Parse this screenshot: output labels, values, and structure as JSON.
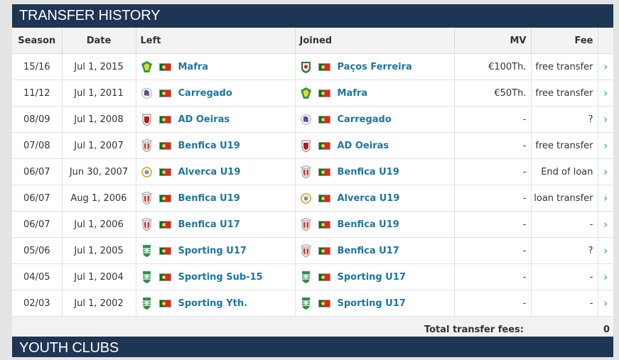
{
  "transfer_history": {
    "title": "TRANSFER HISTORY",
    "columns": {
      "season": "Season",
      "date": "Date",
      "left": "Left",
      "joined": "Joined",
      "mv": "MV",
      "fee": "Fee"
    },
    "rows": [
      {
        "season": "15/16",
        "date": "Jul 1, 2015",
        "left": "Mafra",
        "left_crest": "mafra-crest-icon",
        "joined": "Paços Ferreira",
        "joined_crest": "pacos-crest-icon",
        "mv": "€100Th.",
        "fee": "free transfer"
      },
      {
        "season": "11/12",
        "date": "Jul 1, 2011",
        "left": "Carregado",
        "left_crest": "carregado-crest-icon",
        "joined": "Mafra",
        "joined_crest": "mafra-crest-icon",
        "mv": "€50Th.",
        "fee": "free transfer"
      },
      {
        "season": "08/09",
        "date": "Jul 1, 2008",
        "left": "AD Oeiras",
        "left_crest": "oeiras-crest-icon",
        "joined": "Carregado",
        "joined_crest": "carregado-crest-icon",
        "mv": "-",
        "fee": "?"
      },
      {
        "season": "07/08",
        "date": "Jul 1, 2007",
        "left": "Benfica U19",
        "left_crest": "benfica-crest-icon",
        "joined": "AD Oeiras",
        "joined_crest": "oeiras-crest-icon",
        "mv": "-",
        "fee": "free transfer"
      },
      {
        "season": "06/07",
        "date": "Jun 30, 2007",
        "left": "Alverca U19",
        "left_crest": "alverca-crest-icon",
        "joined": "Benfica U19",
        "joined_crest": "benfica-crest-icon",
        "mv": "-",
        "fee": "End of loan"
      },
      {
        "season": "06/07",
        "date": "Aug 1, 2006",
        "left": "Benfica U19",
        "left_crest": "benfica-crest-icon",
        "joined": "Alverca U19",
        "joined_crest": "alverca-crest-icon",
        "mv": "-",
        "fee": "loan transfer"
      },
      {
        "season": "06/07",
        "date": "Jul 1, 2006",
        "left": "Benfica U17",
        "left_crest": "benfica-crest-icon",
        "joined": "Benfica U19",
        "joined_crest": "benfica-crest-icon",
        "mv": "-",
        "fee": "-"
      },
      {
        "season": "05/06",
        "date": "Jul 1, 2005",
        "left": "Sporting U17",
        "left_crest": "sporting-crest-icon",
        "joined": "Benfica U17",
        "joined_crest": "benfica-crest-icon",
        "mv": "-",
        "fee": "?"
      },
      {
        "season": "04/05",
        "date": "Jul 1, 2004",
        "left": "Sporting Sub-15",
        "left_crest": "sporting-crest-icon",
        "joined": "Sporting U17",
        "joined_crest": "sporting-crest-icon",
        "mv": "-",
        "fee": "-"
      },
      {
        "season": "02/03",
        "date": "Jul 1, 2002",
        "left": "Sporting Yth.",
        "left_crest": "sporting-crest-icon",
        "joined": "Sporting U17",
        "joined_crest": "sporting-crest-icon",
        "mv": "-",
        "fee": "-"
      }
    ],
    "total_label": "Total transfer fees:",
    "total_value": "0",
    "chevron": "›"
  },
  "youth_clubs": {
    "title": "YOUTH CLUBS"
  },
  "colors": {
    "header_bg": "#1e3553",
    "link": "#1d75a3",
    "chevron": "#1d9ad6"
  }
}
